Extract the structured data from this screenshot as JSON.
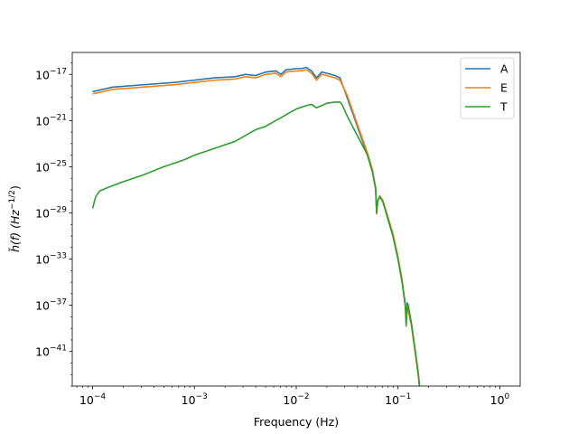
{
  "chart_data": {
    "type": "line",
    "title": "",
    "xlabel": "Frequency (Hz)",
    "ylabel_parts": {
      "main": "h̃(f) (Hz",
      "sup": "−1/2",
      "close": ")"
    },
    "x_scale": "log",
    "y_scale": "log",
    "xlim_log10": [
      -4.2,
      0.2
    ],
    "ylim_log10": [
      -44,
      -15.1
    ],
    "x_ticks": [
      {
        "base": "10",
        "exp": "−4",
        "log10": -4
      },
      {
        "base": "10",
        "exp": "−3",
        "log10": -3
      },
      {
        "base": "10",
        "exp": "−2",
        "log10": -2
      },
      {
        "base": "10",
        "exp": "−1",
        "log10": -1
      },
      {
        "base": "10",
        "exp": "0",
        "log10": 0
      }
    ],
    "y_ticks": [
      {
        "base": "10",
        "exp": "−17",
        "log10": -17
      },
      {
        "base": "10",
        "exp": "−21",
        "log10": -21
      },
      {
        "base": "10",
        "exp": "−25",
        "log10": -25
      },
      {
        "base": "10",
        "exp": "−29",
        "log10": -29
      },
      {
        "base": "10",
        "exp": "−33",
        "log10": -33
      },
      {
        "base": "10",
        "exp": "−37",
        "log10": -37
      },
      {
        "base": "10",
        "exp": "−41",
        "log10": -41
      }
    ],
    "grid": false,
    "legend_position": "top-right",
    "series": [
      {
        "name": "A",
        "color": "#1f77b4",
        "points_log10": [
          [
            -4,
            -18.5
          ],
          [
            -3.8,
            -18.1
          ],
          [
            -3.5,
            -17.9
          ],
          [
            -3.2,
            -17.7
          ],
          [
            -3,
            -17.5
          ],
          [
            -2.8,
            -17.3
          ],
          [
            -2.6,
            -17.2
          ],
          [
            -2.5,
            -17.0
          ],
          [
            -2.4,
            -17.1
          ],
          [
            -2.3,
            -16.8
          ],
          [
            -2.2,
            -16.7
          ],
          [
            -2.15,
            -17.0
          ],
          [
            -2.1,
            -16.6
          ],
          [
            -2.0,
            -16.5
          ],
          [
            -1.95,
            -16.5
          ],
          [
            -1.9,
            -16.4
          ],
          [
            -1.85,
            -16.7
          ],
          [
            -1.8,
            -17.3
          ],
          [
            -1.75,
            -16.8
          ],
          [
            -1.7,
            -16.9
          ],
          [
            -1.62,
            -17.1
          ],
          [
            -1.57,
            -17.3
          ],
          [
            -1.5,
            -19.0
          ],
          [
            -1.4,
            -21.5
          ],
          [
            -1.3,
            -24.0
          ],
          [
            -1.25,
            -25.5
          ],
          [
            -1.22,
            -27.0
          ],
          [
            -1.21,
            -29.0
          ],
          [
            -1.2,
            -28.0
          ],
          [
            -1.18,
            -27.6
          ],
          [
            -1.15,
            -28.0
          ],
          [
            -1.1,
            -29.5
          ],
          [
            -1.05,
            -31.0
          ],
          [
            -1.0,
            -33.0
          ],
          [
            -0.96,
            -35.0
          ],
          [
            -0.93,
            -37.0
          ],
          [
            -0.92,
            -37.8
          ],
          [
            -0.91,
            -36.8
          ],
          [
            -0.9,
            -37.0
          ],
          [
            -0.87,
            -38.5
          ],
          [
            -0.83,
            -41.0
          ],
          [
            -0.8,
            -43.0
          ],
          [
            -0.79,
            -44.0
          ]
        ]
      },
      {
        "name": "E",
        "color": "#ff7f0e",
        "points_log10": [
          [
            -4,
            -18.7
          ],
          [
            -3.8,
            -18.3
          ],
          [
            -3.5,
            -18.1
          ],
          [
            -3.2,
            -17.9
          ],
          [
            -3,
            -17.7
          ],
          [
            -2.8,
            -17.5
          ],
          [
            -2.6,
            -17.4
          ],
          [
            -2.5,
            -17.2
          ],
          [
            -2.4,
            -17.3
          ],
          [
            -2.3,
            -17.0
          ],
          [
            -2.2,
            -16.9
          ],
          [
            -2.15,
            -17.2
          ],
          [
            -2.1,
            -16.8
          ],
          [
            -2.0,
            -16.7
          ],
          [
            -1.95,
            -16.7
          ],
          [
            -1.9,
            -16.6
          ],
          [
            -1.85,
            -16.9
          ],
          [
            -1.8,
            -17.5
          ],
          [
            -1.75,
            -17.0
          ],
          [
            -1.7,
            -17.1
          ],
          [
            -1.62,
            -17.3
          ],
          [
            -1.57,
            -17.5
          ],
          [
            -1.5,
            -18.8
          ],
          [
            -1.4,
            -21.3
          ],
          [
            -1.3,
            -23.8
          ],
          [
            -1.25,
            -25.3
          ],
          [
            -1.22,
            -27.0
          ],
          [
            -1.21,
            -29.1
          ],
          [
            -1.2,
            -28.0
          ],
          [
            -1.18,
            -27.5
          ],
          [
            -1.15,
            -27.9
          ],
          [
            -1.1,
            -29.3
          ],
          [
            -1.05,
            -30.8
          ],
          [
            -1.0,
            -32.8
          ],
          [
            -0.96,
            -34.8
          ],
          [
            -0.93,
            -37.0
          ],
          [
            -0.92,
            -37.0
          ],
          [
            -0.91,
            -37.2
          ],
          [
            -0.9,
            -37.5
          ],
          [
            -0.87,
            -38.7
          ],
          [
            -0.83,
            -41.2
          ],
          [
            -0.8,
            -43.2
          ],
          [
            -0.79,
            -44.0
          ]
        ]
      },
      {
        "name": "T",
        "color": "#2ca02c",
        "points_log10": [
          [
            -4,
            -28.6
          ],
          [
            -3.97,
            -27.6
          ],
          [
            -3.93,
            -27.1
          ],
          [
            -3.85,
            -26.8
          ],
          [
            -3.7,
            -26.3
          ],
          [
            -3.5,
            -25.7
          ],
          [
            -3.3,
            -25.0
          ],
          [
            -3.1,
            -24.4
          ],
          [
            -3.0,
            -24.0
          ],
          [
            -2.8,
            -23.4
          ],
          [
            -2.6,
            -22.8
          ],
          [
            -2.5,
            -22.3
          ],
          [
            -2.4,
            -21.8
          ],
          [
            -2.3,
            -21.5
          ],
          [
            -2.2,
            -21.0
          ],
          [
            -2.1,
            -20.5
          ],
          [
            -2.0,
            -20.0
          ],
          [
            -1.9,
            -19.7
          ],
          [
            -1.85,
            -19.6
          ],
          [
            -1.8,
            -19.9
          ],
          [
            -1.75,
            -19.7
          ],
          [
            -1.7,
            -19.5
          ],
          [
            -1.62,
            -19.4
          ],
          [
            -1.57,
            -19.4
          ],
          [
            -1.55,
            -19.6
          ],
          [
            -1.5,
            -20.6
          ],
          [
            -1.4,
            -22.3
          ],
          [
            -1.3,
            -24.0
          ],
          [
            -1.25,
            -25.5
          ],
          [
            -1.22,
            -26.8
          ],
          [
            -1.21,
            -29.0
          ],
          [
            -1.2,
            -28.0
          ],
          [
            -1.18,
            -27.6
          ],
          [
            -1.15,
            -28.0
          ],
          [
            -1.1,
            -29.5
          ],
          [
            -1.05,
            -31.0
          ],
          [
            -1.0,
            -33.0
          ],
          [
            -0.96,
            -35.0
          ],
          [
            -0.93,
            -36.8
          ],
          [
            -0.92,
            -38.8
          ],
          [
            -0.91,
            -37.2
          ],
          [
            -0.9,
            -37.0
          ],
          [
            -0.87,
            -38.5
          ],
          [
            -0.83,
            -41.0
          ],
          [
            -0.8,
            -43.0
          ],
          [
            -0.79,
            -44.0
          ]
        ]
      }
    ]
  }
}
